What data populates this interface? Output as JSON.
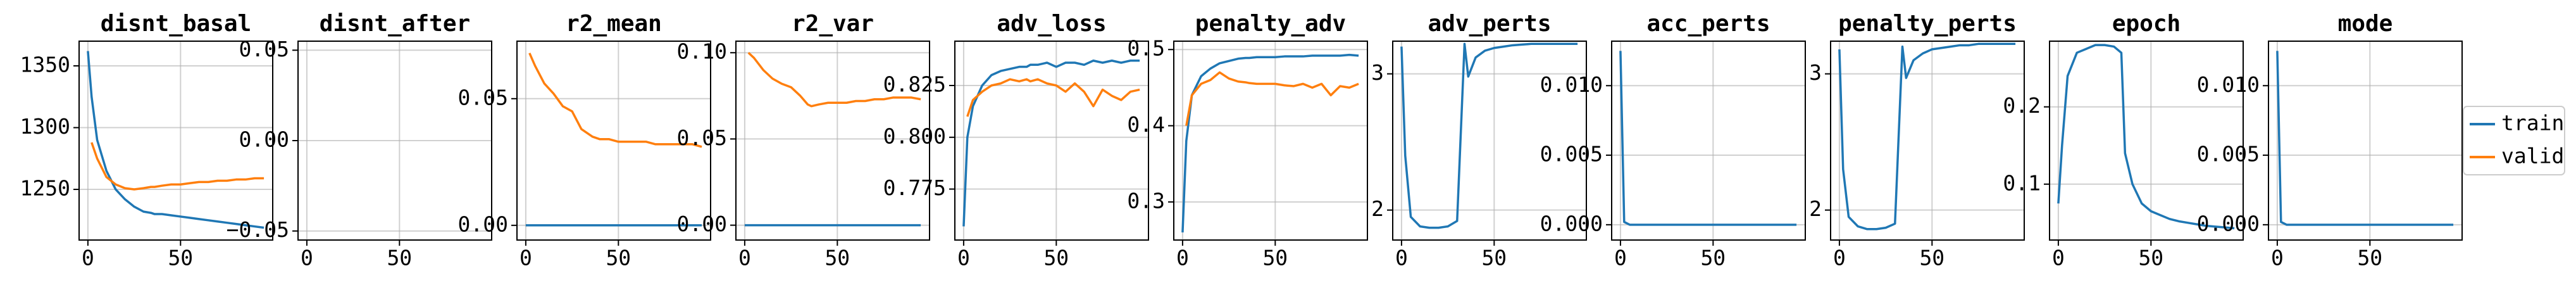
{
  "chart_data": [
    {
      "type": "line",
      "title": "disnt_basal",
      "x": [
        0,
        2,
        5,
        10,
        15,
        20,
        25,
        30,
        34,
        36,
        40,
        45,
        50,
        55,
        60,
        65,
        70,
        75,
        80,
        85,
        90,
        95
      ],
      "xlim": [
        -4.75,
        99.75
      ],
      "xticks": [
        0,
        50
      ],
      "ylim": [
        1209,
        1370
      ],
      "yticks": [
        1250,
        1300,
        1350
      ],
      "grid": true,
      "series": [
        {
          "name": "train",
          "color": "#1f77b4",
          "values": [
            1362,
            1325,
            1290,
            1265,
            1250,
            1242,
            1236,
            1232,
            1231,
            1230,
            1230,
            1229,
            1228,
            1227,
            1226,
            1225,
            1224,
            1223,
            1222,
            1221,
            1220,
            1219
          ]
        },
        {
          "name": "valid",
          "color": "#ff7f0e",
          "values": [
            null,
            1288,
            1275,
            1260,
            1254,
            1251,
            1250,
            1251,
            1252,
            1252,
            1253,
            1254,
            1254,
            1255,
            1256,
            1256,
            1257,
            1257,
            1258,
            1258,
            1259,
            1259
          ]
        }
      ]
    },
    {
      "type": "line",
      "title": "disnt_after",
      "x": [
        0,
        2,
        5,
        10,
        15,
        20,
        25,
        30,
        34,
        36,
        40,
        45,
        50,
        55,
        60,
        65,
        70,
        75,
        80,
        85,
        90,
        95
      ],
      "xlim": [
        -4.75,
        99.75
      ],
      "xticks": [
        0,
        50
      ],
      "ylim": [
        -0.055,
        0.055
      ],
      "yticks": [
        {
          "value": -0.05,
          "label": "−0.05"
        },
        {
          "value": 0,
          "label": "0.00"
        },
        0.05
      ],
      "grid": true,
      "series": []
    },
    {
      "type": "line",
      "title": "r2_mean",
      "x": [
        0,
        2,
        5,
        10,
        15,
        20,
        25,
        30,
        34,
        36,
        40,
        45,
        50,
        55,
        60,
        65,
        70,
        75,
        80,
        85,
        90,
        95
      ],
      "xlim": [
        -4.75,
        99.75
      ],
      "xticks": [
        0,
        50
      ],
      "ylim": [
        -0.0058,
        0.0727
      ],
      "yticks": [
        {
          "value": 0,
          "label": "0.00"
        },
        0.05
      ],
      "grid": true,
      "series": [
        {
          "name": "train",
          "color": "#1f77b4",
          "values": [
            0,
            0,
            0,
            0,
            0,
            0,
            0,
            0,
            0,
            0,
            0,
            0,
            0,
            0,
            0,
            0,
            0,
            0,
            0,
            0,
            0,
            0
          ]
        },
        {
          "name": "valid",
          "color": "#ff7f0e",
          "values": [
            null,
            0.068,
            0.063,
            0.056,
            0.052,
            0.047,
            0.045,
            0.038,
            0.036,
            0.035,
            0.034,
            0.034,
            0.033,
            0.033,
            0.033,
            0.033,
            0.032,
            0.032,
            0.032,
            0.032,
            0.032,
            0.031
          ]
        }
      ]
    },
    {
      "type": "line",
      "title": "r2_var",
      "x": [
        0,
        2,
        5,
        10,
        15,
        20,
        25,
        30,
        34,
        36,
        40,
        45,
        50,
        55,
        60,
        65,
        70,
        75,
        80,
        85,
        90,
        95
      ],
      "xlim": [
        -4.75,
        99.75
      ],
      "xticks": [
        0,
        50
      ],
      "ylim": [
        -0.0086,
        0.1067
      ],
      "yticks": [
        {
          "value": 0,
          "label": "0.00"
        },
        0.05,
        {
          "value": 0.1,
          "label": "0.10"
        }
      ],
      "grid": true,
      "series": [
        {
          "name": "train",
          "color": "#1f77b4",
          "values": [
            0,
            0,
            0,
            0,
            0,
            0,
            0,
            0,
            0,
            0,
            0,
            0,
            0,
            0,
            0,
            0,
            0,
            0,
            0,
            0,
            0,
            0
          ]
        },
        {
          "name": "valid",
          "color": "#ff7f0e",
          "values": [
            null,
            0.1,
            0.097,
            0.09,
            0.085,
            0.082,
            0.08,
            0.075,
            0.07,
            0.069,
            0.07,
            0.071,
            0.071,
            0.071,
            0.072,
            0.072,
            0.073,
            0.073,
            0.074,
            0.074,
            0.074,
            0.073
          ]
        }
      ]
    },
    {
      "type": "line",
      "title": "adv_loss",
      "x": [
        0,
        2,
        5,
        10,
        15,
        20,
        25,
        30,
        34,
        36,
        40,
        45,
        50,
        55,
        60,
        65,
        70,
        75,
        80,
        85,
        90,
        95
      ],
      "xlim": [
        -4.75,
        99.75
      ],
      "xticks": [
        0,
        50
      ],
      "ylim": [
        0.7504,
        0.8464
      ],
      "yticks": [
        0.775,
        {
          "value": 0.8,
          "label": "0.800"
        },
        0.825
      ],
      "grid": true,
      "series": [
        {
          "name": "train",
          "color": "#1f77b4",
          "values": [
            0.757,
            0.8,
            0.815,
            0.825,
            0.83,
            0.832,
            0.833,
            0.834,
            0.834,
            0.835,
            0.835,
            0.836,
            0.834,
            0.836,
            0.836,
            0.835,
            0.837,
            0.836,
            0.837,
            0.836,
            0.837,
            0.837
          ]
        },
        {
          "name": "valid",
          "color": "#ff7f0e",
          "values": [
            null,
            0.81,
            0.818,
            0.822,
            0.825,
            0.826,
            0.828,
            0.827,
            0.828,
            0.827,
            0.828,
            0.826,
            0.825,
            0.822,
            0.826,
            0.822,
            0.815,
            0.823,
            0.82,
            0.818,
            0.822,
            0.823
          ]
        }
      ]
    },
    {
      "type": "line",
      "title": "penalty_adv",
      "x": [
        0,
        2,
        5,
        10,
        15,
        20,
        25,
        30,
        34,
        36,
        40,
        45,
        50,
        55,
        60,
        65,
        70,
        75,
        80,
        85,
        90,
        95
      ],
      "xlim": [
        -4.75,
        99.75
      ],
      "xticks": [
        0,
        50
      ],
      "ylim": [
        0.25,
        0.511
      ],
      "yticks": [
        0.3,
        0.4,
        0.5
      ],
      "grid": true,
      "series": [
        {
          "name": "train",
          "color": "#1f77b4",
          "values": [
            0.26,
            0.38,
            0.44,
            0.465,
            0.475,
            0.482,
            0.485,
            0.488,
            0.489,
            0.489,
            0.49,
            0.49,
            0.49,
            0.491,
            0.491,
            0.491,
            0.492,
            0.492,
            0.492,
            0.492,
            0.493,
            0.492
          ]
        },
        {
          "name": "valid",
          "color": "#ff7f0e",
          "values": [
            null,
            0.4,
            0.44,
            0.455,
            0.46,
            0.47,
            0.462,
            0.458,
            0.457,
            0.456,
            0.455,
            0.455,
            0.455,
            0.453,
            0.452,
            0.455,
            0.45,
            0.455,
            0.44,
            0.452,
            0.45,
            0.455
          ]
        }
      ]
    },
    {
      "type": "line",
      "title": "adv_perts",
      "x": [
        0,
        2,
        5,
        10,
        15,
        20,
        25,
        30,
        34,
        36,
        40,
        45,
        50,
        55,
        60,
        65,
        70,
        75,
        80,
        85,
        90,
        95
      ],
      "xlim": [
        -4.75,
        99.75
      ],
      "xticks": [
        0,
        50
      ],
      "ylim": [
        1.78,
        3.24
      ],
      "yticks": [
        2,
        3
      ],
      "grid": true,
      "series": [
        {
          "name": "train",
          "color": "#1f77b4",
          "values": [
            3.2,
            2.4,
            1.95,
            1.88,
            1.87,
            1.87,
            1.88,
            1.92,
            3.22,
            2.98,
            3.12,
            3.17,
            3.19,
            3.2,
            3.21,
            3.215,
            3.22,
            3.22,
            3.22,
            3.22,
            3.22,
            3.22
          ]
        }
      ]
    },
    {
      "type": "line",
      "title": "acc_perts",
      "x": [
        0,
        2,
        5,
        10,
        15,
        20,
        25,
        30,
        34,
        36,
        40,
        45,
        50,
        55,
        60,
        65,
        70,
        75,
        80,
        85,
        90,
        95
      ],
      "xlim": [
        -4.75,
        99.75
      ],
      "xticks": [
        0,
        50
      ],
      "ylim": [
        -0.0011,
        0.0132
      ],
      "yticks": [
        {
          "value": 0,
          "label": "0.000"
        },
        0.005,
        {
          "value": 0.01,
          "label": "0.010"
        }
      ],
      "grid": true,
      "series": [
        {
          "name": "train",
          "color": "#1f77b4",
          "values": [
            0.0125,
            0.0002,
            0,
            0,
            0,
            0,
            0,
            0,
            0,
            0,
            0,
            0,
            0,
            0,
            0,
            0,
            0,
            0,
            0,
            0,
            0,
            0
          ]
        }
      ]
    },
    {
      "type": "line",
      "title": "penalty_perts",
      "x": [
        0,
        2,
        5,
        10,
        15,
        20,
        25,
        30,
        34,
        36,
        40,
        45,
        50,
        55,
        60,
        65,
        70,
        75,
        80,
        85,
        90,
        95
      ],
      "xlim": [
        -4.75,
        99.75
      ],
      "xticks": [
        0,
        50
      ],
      "ylim": [
        1.78,
        3.24
      ],
      "yticks": [
        2,
        3
      ],
      "grid": true,
      "series": [
        {
          "name": "train",
          "color": "#1f77b4",
          "values": [
            3.18,
            2.3,
            1.95,
            1.88,
            1.86,
            1.86,
            1.87,
            1.9,
            3.2,
            2.97,
            3.1,
            3.15,
            3.18,
            3.19,
            3.2,
            3.21,
            3.21,
            3.22,
            3.22,
            3.22,
            3.22,
            3.22
          ]
        }
      ]
    },
    {
      "type": "line",
      "title": "epoch",
      "x": [
        0,
        2,
        5,
        10,
        15,
        20,
        25,
        30,
        34,
        36,
        40,
        45,
        50,
        55,
        60,
        65,
        70,
        75,
        80,
        85,
        90,
        95
      ],
      "xlim": [
        -4.75,
        99.75
      ],
      "xticks": [
        0,
        50
      ],
      "ylim": [
        0.0277,
        0.285
      ],
      "yticks": [
        0.1,
        0.2
      ],
      "grid": true,
      "series": [
        {
          "name": "train",
          "color": "#1f77b4",
          "values": [
            0.075,
            0.15,
            0.24,
            0.27,
            0.275,
            0.28,
            0.28,
            0.278,
            0.27,
            0.14,
            0.1,
            0.075,
            0.065,
            0.06,
            0.055,
            0.052,
            0.05,
            0.048,
            0.046,
            0.045,
            0.044,
            0.043
          ]
        }
      ]
    },
    {
      "type": "line",
      "title": "mode",
      "x": [
        0,
        2,
        5,
        10,
        15,
        20,
        25,
        30,
        34,
        36,
        40,
        45,
        50,
        55,
        60,
        65,
        70,
        75,
        80,
        85,
        90,
        95
      ],
      "xlim": [
        -4.75,
        99.75
      ],
      "xticks": [
        0,
        50
      ],
      "ylim": [
        -0.0011,
        0.0132
      ],
      "yticks": [
        {
          "value": 0,
          "label": "0.000"
        },
        0.005,
        {
          "value": 0.01,
          "label": "0.010"
        }
      ],
      "grid": true,
      "series": [
        {
          "name": "train",
          "color": "#1f77b4",
          "values": [
            0.0125,
            0.0002,
            0,
            0,
            0,
            0,
            0,
            0,
            0,
            0,
            0,
            0,
            0,
            0,
            0,
            0,
            0,
            0,
            0,
            0,
            0,
            0
          ]
        }
      ]
    }
  ],
  "legend": {
    "loc": "center right",
    "items": [
      {
        "name": "train",
        "color": "#1f77b4"
      },
      {
        "name": "valid",
        "color": "#ff7f0e"
      }
    ]
  }
}
